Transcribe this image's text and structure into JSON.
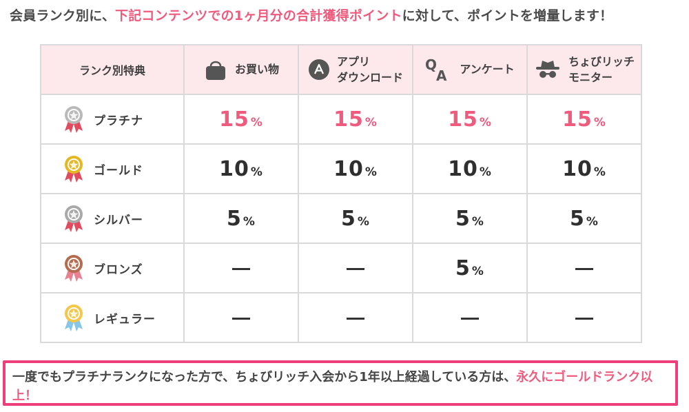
{
  "intro": {
    "part1": "会員ランク別に、",
    "highlight": "下記コンテンツでの1ヶ月分の合計獲得ポイント",
    "part2": "に対して、ポイントを増量します！"
  },
  "table": {
    "header_rank": "ランク別特典",
    "columns": [
      {
        "icon": "shopping-bag-icon",
        "line1": "お買い物",
        "line2": ""
      },
      {
        "icon": "app-download-icon",
        "line1": "アプリ",
        "line2": "ダウンロード"
      },
      {
        "icon": "qa-icon",
        "line1": "アンケート",
        "line2": ""
      },
      {
        "icon": "spy-hat-icon",
        "line1": "ちょびリッチ",
        "line2": "モニター"
      }
    ],
    "pct": "%",
    "dash": "—",
    "rows": [
      {
        "rank": "プラチナ",
        "medal_color": "#b9b9b9",
        "ribbon": "#e24b5e",
        "values": [
          "15",
          "15",
          "15",
          "15"
        ],
        "highlight": true
      },
      {
        "rank": "ゴールド",
        "medal_color": "#e5b823",
        "ribbon": "#e24b5e",
        "values": [
          "10",
          "10",
          "10",
          "10"
        ],
        "highlight": false
      },
      {
        "rank": "シルバー",
        "medal_color": "#a9a9a9",
        "ribbon": "#e24b5e",
        "values": [
          "5",
          "5",
          "5",
          "5"
        ],
        "highlight": false
      },
      {
        "rank": "ブロンズ",
        "medal_color": "#b56b4e",
        "ribbon": "#e8808f",
        "values": [
          "—",
          "—",
          "5",
          "—"
        ],
        "highlight": false
      },
      {
        "rank": "レギュラー",
        "medal_color": "#f2c74a",
        "ribbon": "#86c6e8",
        "values": [
          "—",
          "—",
          "—",
          "—"
        ],
        "highlight": false
      }
    ]
  },
  "note": {
    "part1": "一度でもプラチナランクになった方で、ちょびリッチ入会から1年以上経過している方は、",
    "highlight": "永久にゴールドランク以上！"
  },
  "colors": {
    "accent": "#ef5a7d",
    "note_border": "#ef3f7a",
    "header_bg": "#fde9ec",
    "grid": "#d9d9d9"
  }
}
